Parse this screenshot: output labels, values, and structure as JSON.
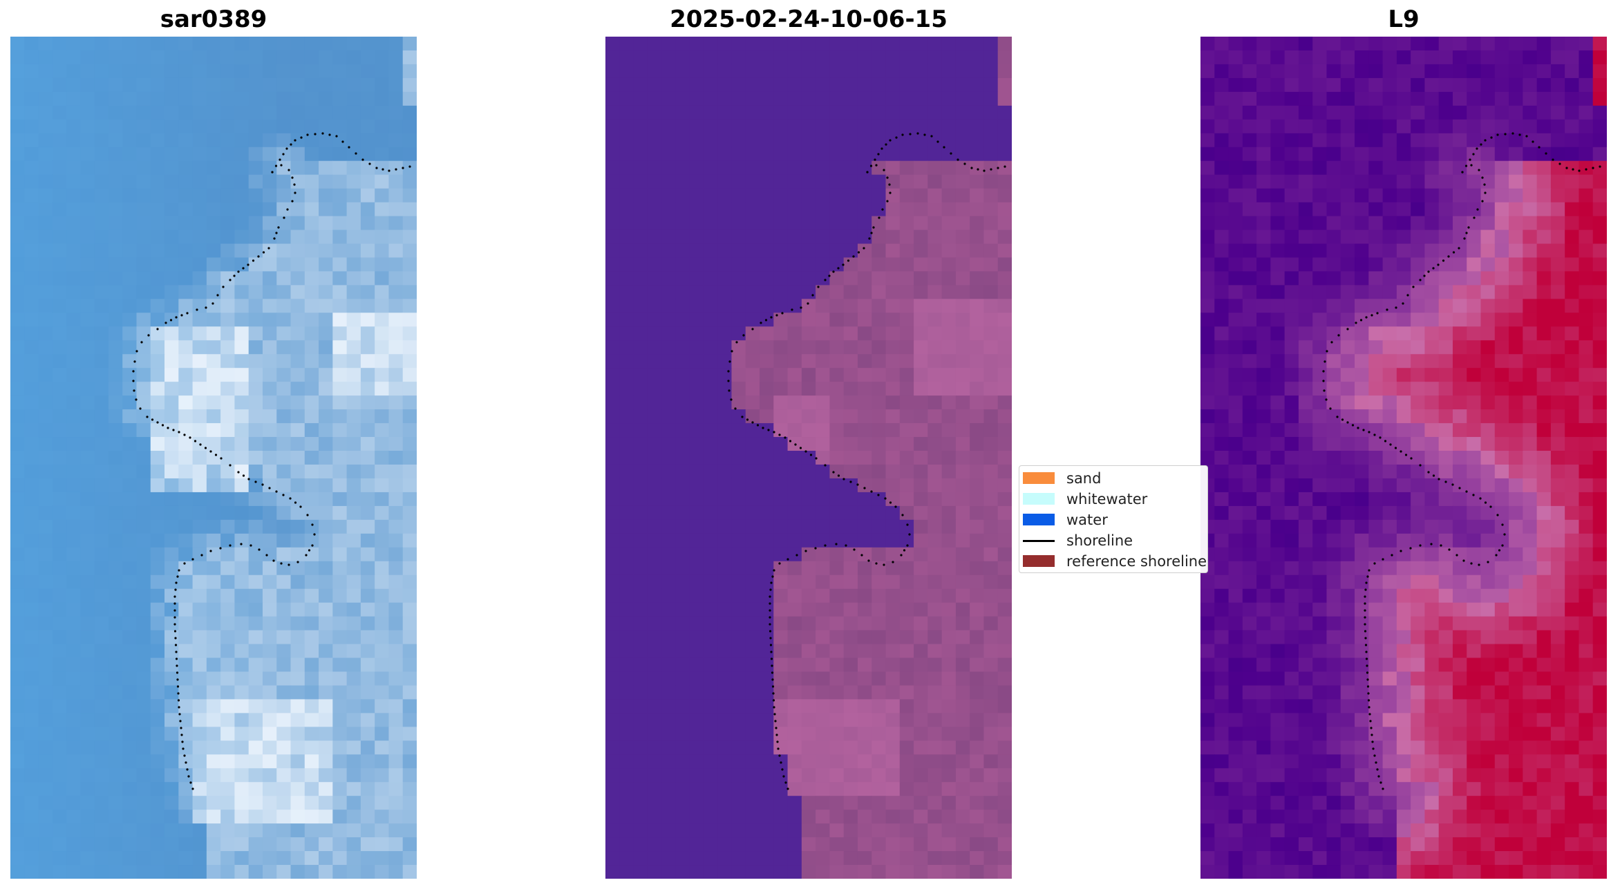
{
  "panels": [
    {
      "title": "sar0389"
    },
    {
      "title": "2025-02-24-10-06-15"
    },
    {
      "title": "L9"
    }
  ],
  "legend": {
    "items": [
      {
        "label": "sand",
        "color": "#f98c3c",
        "kind": "patch"
      },
      {
        "label": "whitewater",
        "color": "#c6fcfc",
        "kind": "patch"
      },
      {
        "label": "water",
        "color": "#0a5ce6",
        "kind": "patch"
      },
      {
        "label": "shoreline",
        "color": "#000000",
        "kind": "line"
      },
      {
        "label": "reference shoreline",
        "color": "#952d2d",
        "kind": "patch"
      }
    ]
  },
  "colors": {
    "rgb_water": "#5595cf",
    "class_water": "#522597",
    "class_land": "#8a4a86",
    "ndwi_low": "#58098f",
    "ndwi_high": "#c0003a"
  }
}
